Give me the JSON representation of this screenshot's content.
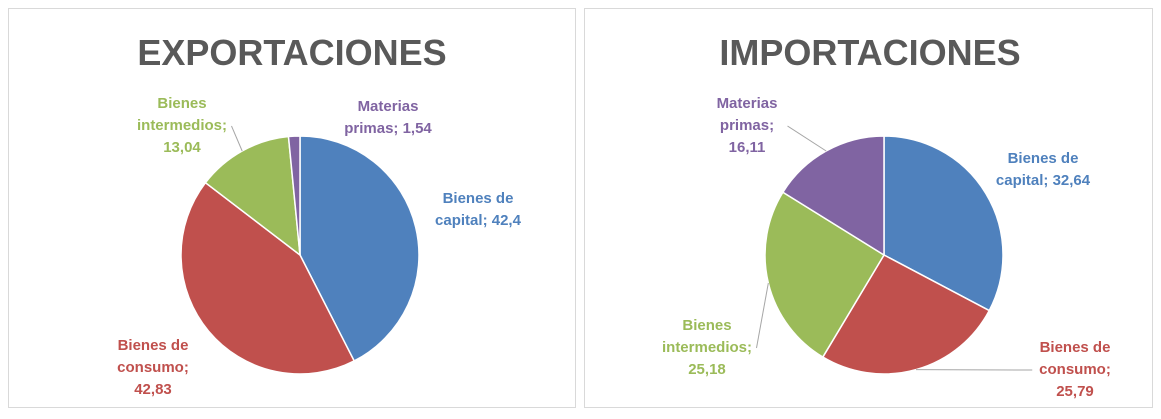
{
  "chart_data": [
    {
      "type": "pie",
      "title": "EXPORTACIONES",
      "values": [
        42.4,
        42.83,
        13.04,
        1.54
      ],
      "value_labels": [
        "Bienes de capital; 42,4",
        "Bienes de consumo; 42,83",
        "Bienes intermedios; 13,04",
        "Materias primas; 1,54"
      ],
      "colors": [
        "#4f81bd",
        "#c0504d",
        "#9bbb59",
        "#8064a2"
      ]
    },
    {
      "type": "pie",
      "title": "IMPORTACIONES",
      "values": [
        32.64,
        25.79,
        25.18,
        16.11
      ],
      "value_labels": [
        "Bienes de capital; 32,64",
        "Bienes de consumo; 25,79",
        "Bienes intermedios; 25,18",
        "Materias primas; 16,11"
      ],
      "colors": [
        "#4f81bd",
        "#c0504d",
        "#9bbb59",
        "#8064a2"
      ]
    }
  ]
}
